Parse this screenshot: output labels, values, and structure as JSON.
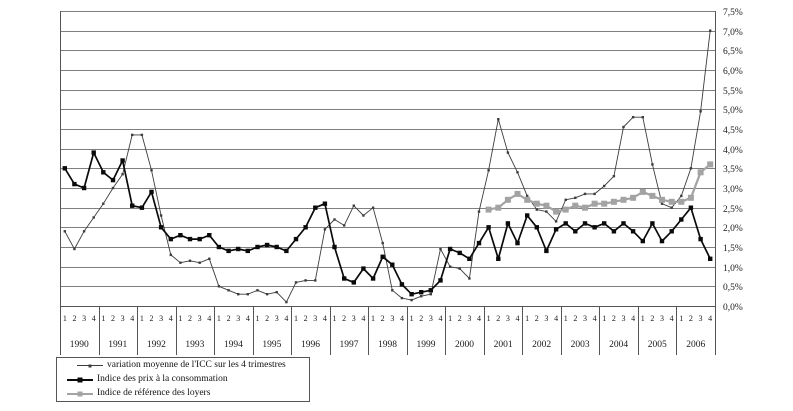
{
  "chart_data": {
    "type": "line",
    "title": "",
    "grid": "horizontal",
    "legend_position": "bottom-left",
    "y_axis": {
      "min": 0,
      "max": 7.5,
      "step": 0.5,
      "side": "right",
      "tick_labels": [
        "7,5%",
        "7,0%",
        "6,5%",
        "6,0%",
        "5,5%",
        "5,0%",
        "4,5%",
        "4,0%",
        "3,5%",
        "3,0%",
        "2,5%",
        "2,0%",
        "1,5%",
        "1,0%",
        "0,5%",
        "0,0%"
      ]
    },
    "x_axis": {
      "years": [
        "1990",
        "1991",
        "1992",
        "1993",
        "1994",
        "1995",
        "1996",
        "1997",
        "1998",
        "1999",
        "2000",
        "2001",
        "2002",
        "2003",
        "2004",
        "2005",
        "2006"
      ],
      "quarter_labels": [
        "1",
        "2",
        "3",
        "4"
      ]
    },
    "series": [
      {
        "name": "variation moyenne de l'ICC sur les 4 trimestres",
        "color": "#3d3d3d",
        "marker": "dot",
        "line_width": 0.9,
        "values": [
          1.9,
          1.45,
          1.9,
          2.25,
          2.6,
          3.0,
          3.35,
          4.35,
          4.35,
          3.45,
          2.3,
          1.3,
          1.1,
          1.15,
          1.1,
          1.2,
          0.5,
          0.4,
          0.3,
          0.3,
          0.4,
          0.3,
          0.35,
          0.1,
          0.6,
          0.65,
          0.65,
          1.95,
          2.2,
          2.05,
          2.55,
          2.3,
          2.5,
          1.6,
          0.4,
          0.2,
          0.15,
          0.25,
          0.3,
          1.45,
          1.0,
          0.95,
          0.7,
          2.4,
          3.45,
          4.75,
          3.9,
          3.4,
          2.8,
          2.45,
          2.4,
          2.15,
          2.7,
          2.75,
          2.85,
          2.85,
          3.05,
          3.3,
          4.55,
          4.8,
          4.8,
          3.6,
          2.6,
          2.5,
          2.8,
          3.5,
          4.95,
          7.0
        ]
      },
      {
        "name": "Indice des prix à la consommation",
        "color": "#0a0a0a",
        "marker": "square",
        "line_width": 1.7,
        "values": [
          3.5,
          3.1,
          3.0,
          3.9,
          3.4,
          3.2,
          3.7,
          2.55,
          2.5,
          2.9,
          2.0,
          1.7,
          1.8,
          1.7,
          1.7,
          1.8,
          1.5,
          1.4,
          1.45,
          1.4,
          1.5,
          1.55,
          1.5,
          1.4,
          1.7,
          2.0,
          2.5,
          2.6,
          1.5,
          0.7,
          0.6,
          0.95,
          0.7,
          1.25,
          1.05,
          0.55,
          0.3,
          0.35,
          0.4,
          0.65,
          1.45,
          1.35,
          1.2,
          1.6,
          2.0,
          1.2,
          2.1,
          1.6,
          2.3,
          2.0,
          1.4,
          1.95,
          2.1,
          1.9,
          2.1,
          2.0,
          2.1,
          1.9,
          2.1,
          1.9,
          1.65,
          2.1,
          1.65,
          1.9,
          2.2,
          2.5,
          1.7,
          1.2
        ]
      },
      {
        "name": "Indice de référence des loyers",
        "color": "#a3a3a3",
        "marker": "square-large",
        "line_width": 2.2,
        "values": [
          null,
          null,
          null,
          null,
          null,
          null,
          null,
          null,
          null,
          null,
          null,
          null,
          null,
          null,
          null,
          null,
          null,
          null,
          null,
          null,
          null,
          null,
          null,
          null,
          null,
          null,
          null,
          null,
          null,
          null,
          null,
          null,
          null,
          null,
          null,
          null,
          null,
          null,
          null,
          null,
          null,
          null,
          null,
          null,
          2.45,
          2.5,
          2.7,
          2.85,
          2.7,
          2.6,
          2.55,
          2.4,
          2.45,
          2.55,
          2.5,
          2.6,
          2.6,
          2.65,
          2.7,
          2.75,
          2.9,
          2.8,
          2.7,
          2.65,
          2.65,
          2.75,
          3.4,
          3.6
        ]
      }
    ]
  },
  "style": {
    "grid_color": "#7f7f7f",
    "axis_color": "#555555",
    "text_color": "#1a1a1a"
  }
}
